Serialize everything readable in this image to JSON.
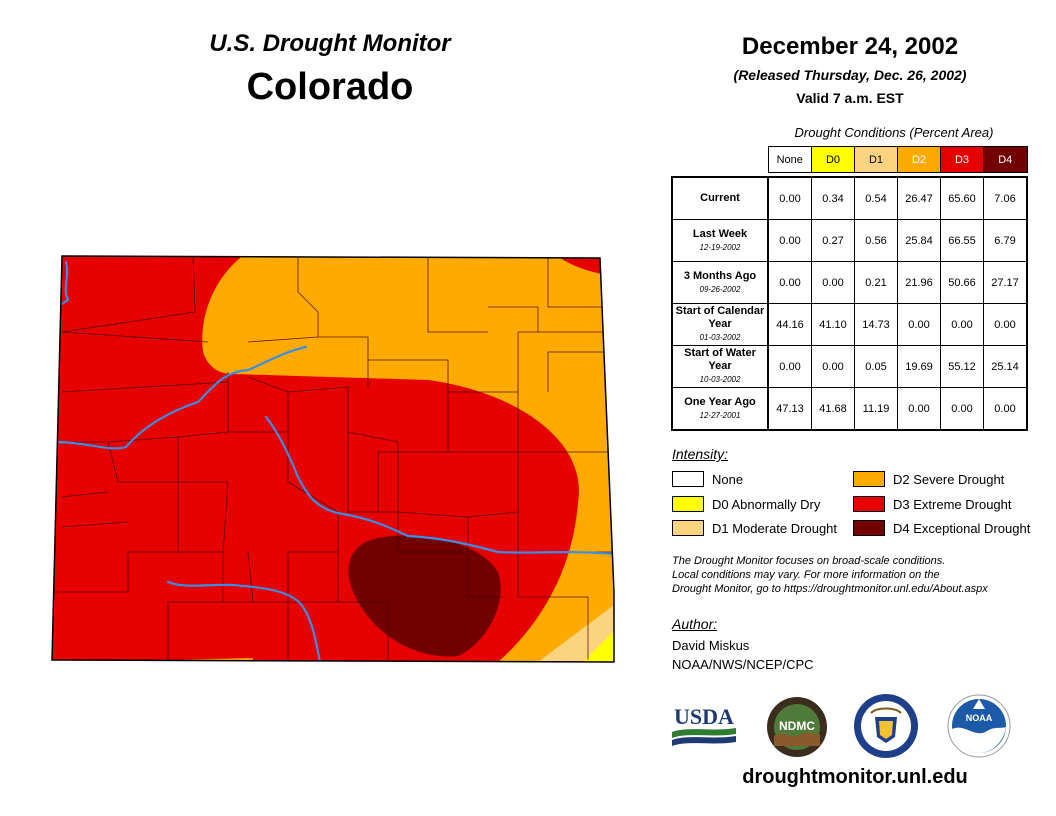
{
  "header": {
    "monitor_title": "U.S. Drought Monitor",
    "state": "Colorado",
    "date": "December 24, 2002",
    "released": "(Released Thursday, Dec. 26, 2002)",
    "valid": "Valid 7 a.m. EST"
  },
  "table": {
    "caption": "Drought Conditions (Percent Area)",
    "columns": [
      {
        "label": "None",
        "color": "#ffffff",
        "text_color": "#000000"
      },
      {
        "label": "D0",
        "color": "#ffff00",
        "text_color": "#000000"
      },
      {
        "label": "D1",
        "color": "#fcd37f",
        "text_color": "#000000"
      },
      {
        "label": "D2",
        "color": "#ffaa00",
        "text_color": "#ffffff"
      },
      {
        "label": "D3",
        "color": "#e60000",
        "text_color": "#ffffff"
      },
      {
        "label": "D4",
        "color": "#730000",
        "text_color": "#ffffff"
      }
    ],
    "rows": [
      {
        "label": "Current",
        "date": "",
        "values": [
          "0.00",
          "0.34",
          "0.54",
          "26.47",
          "65.60",
          "7.06"
        ]
      },
      {
        "label": "Last Week",
        "date": "12-19-2002",
        "values": [
          "0.00",
          "0.27",
          "0.56",
          "25.84",
          "66.55",
          "6.79"
        ]
      },
      {
        "label": "3 Months Ago",
        "date": "09-26-2002",
        "values": [
          "0.00",
          "0.00",
          "0.21",
          "21.96",
          "50.66",
          "27.17"
        ]
      },
      {
        "label": "Start of Calendar Year",
        "date": "01-03-2002",
        "values": [
          "44.16",
          "41.10",
          "14.73",
          "0.00",
          "0.00",
          "0.00"
        ]
      },
      {
        "label": "Start of Water Year",
        "date": "10-03-2002",
        "values": [
          "0.00",
          "0.00",
          "0.05",
          "19.69",
          "55.12",
          "25.14"
        ]
      },
      {
        "label": "One Year Ago",
        "date": "12-27-2001",
        "values": [
          "47.13",
          "41.68",
          "11.19",
          "0.00",
          "0.00",
          "0.00"
        ]
      }
    ]
  },
  "legend": {
    "heading": "Intensity:",
    "items": [
      {
        "label": "None",
        "color": "#ffffff"
      },
      {
        "label": "D0 Abnormally Dry",
        "color": "#ffff00"
      },
      {
        "label": "D1 Moderate Drought",
        "color": "#fcd37f"
      },
      {
        "label": "D2 Severe Drought",
        "color": "#ffaa00"
      },
      {
        "label": "D3 Extreme Drought",
        "color": "#e60000"
      },
      {
        "label": "D4 Exceptional Drought",
        "color": "#730000"
      }
    ]
  },
  "note": {
    "line1": "The Drought Monitor focuses on broad-scale conditions.",
    "line2": "Local conditions may vary. For more information on the",
    "line3": "Drought Monitor, go to https://droughtmonitor.unl.edu/About.aspx"
  },
  "author": {
    "heading": "Author:",
    "name": "David Miskus",
    "org": "NOAA/NWS/NCEP/CPC"
  },
  "logos": {
    "usda": "USDA",
    "ndmc": "NDMC",
    "noaa": "NOAA"
  },
  "website": "droughtmonitor.unl.edu",
  "colors": {
    "map_border": "#000000",
    "river": "#3a8ee6",
    "county_line": "#3d0000"
  }
}
